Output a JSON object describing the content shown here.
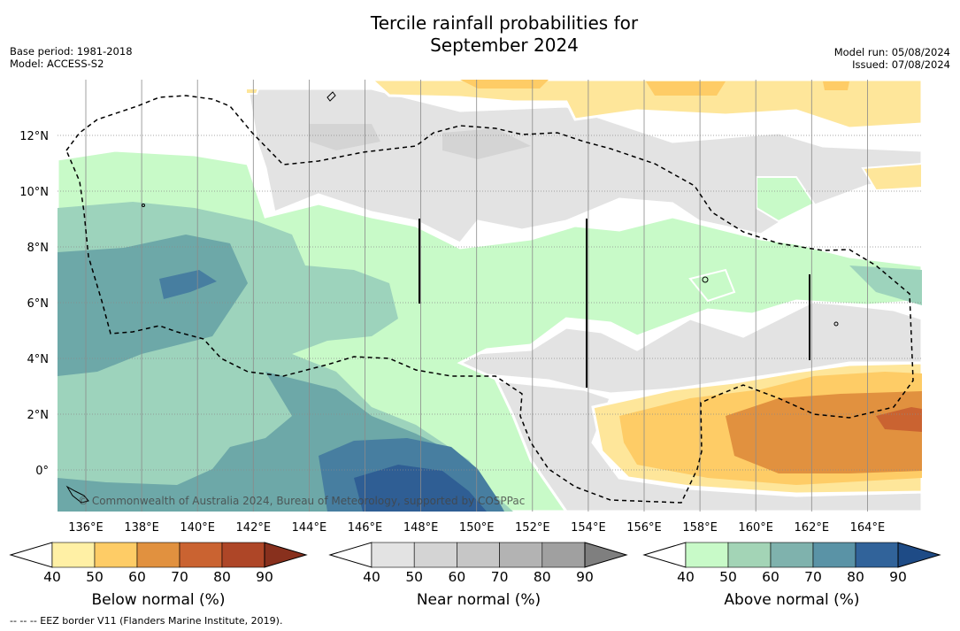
{
  "header": {
    "title_line1": "Tercile rainfall probabilities for",
    "title_line2": "September 2024",
    "base_period": "Base period: 1981-2018",
    "model": "Model: ACCESS-S2",
    "model_run": "Model run: 05/08/2024",
    "issued": "Issued: 07/08/2024"
  },
  "map": {
    "lat_labels": [
      "12°N",
      "10°N",
      "8°N",
      "6°N",
      "4°N",
      "2°N",
      "0°"
    ],
    "lon_labels": [
      "136°E",
      "138°E",
      "140°E",
      "142°E",
      "144°E",
      "146°E",
      "148°E",
      "150°E",
      "152°E",
      "154°E",
      "156°E",
      "158°E",
      "160°E",
      "162°E",
      "164°E"
    ],
    "copyright": "© Commonwealth of Australia 2024, Bureau of Meteorology, supported by COSPPac"
  },
  "legends": [
    {
      "title": "Below normal (%)",
      "ticks": [
        "40",
        "50",
        "60",
        "70",
        "80",
        "90"
      ],
      "colors": [
        "#ffffff",
        "#fff0a5",
        "#fecc66",
        "#e1913f",
        "#ca6331",
        "#ae4627",
        "#88301d"
      ]
    },
    {
      "title": "Near normal (%)",
      "ticks": [
        "40",
        "50",
        "60",
        "70",
        "80",
        "90"
      ],
      "colors": [
        "#ffffff",
        "#e3e3e3",
        "#d4d4d4",
        "#c6c6c6",
        "#b3b3b3",
        "#a0a0a0",
        "#7f7f7f"
      ]
    },
    {
      "title": "Above normal (%)",
      "ticks": [
        "40",
        "50",
        "60",
        "70",
        "80",
        "90"
      ],
      "colors": [
        "#ffffff",
        "#c8fac8",
        "#a3d4b6",
        "#7fb2ad",
        "#5a93a6",
        "#31639a",
        "#1e4b86"
      ]
    }
  ],
  "footnote": "--  --  -- EEZ border V11 (Flanders Marine Institute, 2019).",
  "colors": {
    "nn50": "#e3e3e3",
    "nn60": "#d4d4d4",
    "bn50": "#fee69a",
    "bn60": "#fecc66",
    "bn70": "#e1913f",
    "bn80": "#ca6331",
    "an50": "#c8fac8",
    "an60": "#9dd3bc",
    "an70": "#6da8a8",
    "an80": "#477ea0",
    "an90": "#2f5e94"
  }
}
